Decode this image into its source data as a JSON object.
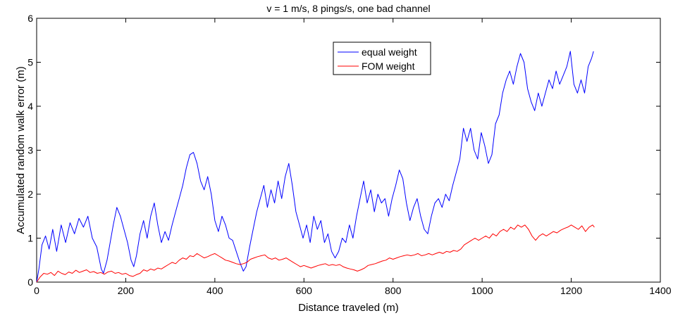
{
  "chart_data": {
    "type": "line",
    "title": "v = 1 m/s, 8 pings/s, one bad channel",
    "xlabel": "Distance traveled (m)",
    "ylabel": "Accumulated random walk error (m)",
    "xlim": [
      0,
      1400
    ],
    "ylim": [
      0,
      6
    ],
    "xticks": [
      0,
      200,
      400,
      600,
      800,
      1000,
      1200,
      1400
    ],
    "yticks": [
      0,
      1,
      2,
      3,
      4,
      5,
      6
    ],
    "grid": false,
    "legend_position": "top-center",
    "series": [
      {
        "name": "equal weight",
        "color": "#0000ff",
        "points": [
          [
            0,
            0.0
          ],
          [
            5,
            0.3
          ],
          [
            12,
            0.85
          ],
          [
            20,
            1.05
          ],
          [
            28,
            0.75
          ],
          [
            36,
            1.2
          ],
          [
            45,
            0.7
          ],
          [
            55,
            1.3
          ],
          [
            65,
            0.9
          ],
          [
            75,
            1.35
          ],
          [
            85,
            1.1
          ],
          [
            95,
            1.45
          ],
          [
            105,
            1.25
          ],
          [
            115,
            1.5
          ],
          [
            125,
            1.0
          ],
          [
            135,
            0.8
          ],
          [
            145,
            0.3
          ],
          [
            150,
            0.2
          ],
          [
            158,
            0.5
          ],
          [
            165,
            0.9
          ],
          [
            172,
            1.3
          ],
          [
            180,
            1.7
          ],
          [
            188,
            1.5
          ],
          [
            196,
            1.2
          ],
          [
            204,
            0.9
          ],
          [
            212,
            0.5
          ],
          [
            218,
            0.35
          ],
          [
            224,
            0.6
          ],
          [
            232,
            1.1
          ],
          [
            240,
            1.4
          ],
          [
            248,
            1.0
          ],
          [
            256,
            1.5
          ],
          [
            264,
            1.8
          ],
          [
            272,
            1.3
          ],
          [
            280,
            0.9
          ],
          [
            288,
            1.15
          ],
          [
            296,
            0.95
          ],
          [
            304,
            1.3
          ],
          [
            312,
            1.6
          ],
          [
            320,
            1.9
          ],
          [
            328,
            2.2
          ],
          [
            336,
            2.6
          ],
          [
            344,
            2.9
          ],
          [
            352,
            2.95
          ],
          [
            360,
            2.7
          ],
          [
            368,
            2.3
          ],
          [
            376,
            2.1
          ],
          [
            384,
            2.4
          ],
          [
            392,
            2.0
          ],
          [
            400,
            1.4
          ],
          [
            408,
            1.15
          ],
          [
            416,
            1.5
          ],
          [
            424,
            1.3
          ],
          [
            432,
            1.0
          ],
          [
            440,
            0.95
          ],
          [
            448,
            0.7
          ],
          [
            456,
            0.45
          ],
          [
            464,
            0.25
          ],
          [
            470,
            0.35
          ],
          [
            478,
            0.8
          ],
          [
            486,
            1.2
          ],
          [
            494,
            1.6
          ],
          [
            502,
            1.9
          ],
          [
            510,
            2.2
          ],
          [
            518,
            1.7
          ],
          [
            526,
            2.1
          ],
          [
            534,
            1.8
          ],
          [
            542,
            2.3
          ],
          [
            550,
            1.9
          ],
          [
            558,
            2.4
          ],
          [
            566,
            2.7
          ],
          [
            574,
            2.2
          ],
          [
            582,
            1.6
          ],
          [
            590,
            1.3
          ],
          [
            598,
            1.0
          ],
          [
            606,
            1.3
          ],
          [
            614,
            0.9
          ],
          [
            622,
            1.5
          ],
          [
            630,
            1.2
          ],
          [
            638,
            1.4
          ],
          [
            646,
            0.9
          ],
          [
            654,
            1.1
          ],
          [
            662,
            0.7
          ],
          [
            670,
            0.55
          ],
          [
            678,
            0.7
          ],
          [
            686,
            1.0
          ],
          [
            694,
            0.9
          ],
          [
            702,
            1.3
          ],
          [
            710,
            1.0
          ],
          [
            718,
            1.5
          ],
          [
            726,
            1.9
          ],
          [
            734,
            2.3
          ],
          [
            742,
            1.8
          ],
          [
            750,
            2.1
          ],
          [
            758,
            1.6
          ],
          [
            766,
            2.0
          ],
          [
            774,
            1.8
          ],
          [
            782,
            1.9
          ],
          [
            790,
            1.5
          ],
          [
            798,
            1.9
          ],
          [
            806,
            2.2
          ],
          [
            814,
            2.55
          ],
          [
            822,
            2.35
          ],
          [
            830,
            1.8
          ],
          [
            838,
            1.4
          ],
          [
            846,
            1.7
          ],
          [
            854,
            1.9
          ],
          [
            862,
            1.5
          ],
          [
            870,
            1.2
          ],
          [
            878,
            1.1
          ],
          [
            886,
            1.5
          ],
          [
            894,
            1.8
          ],
          [
            902,
            1.9
          ],
          [
            910,
            1.7
          ],
          [
            918,
            2.0
          ],
          [
            926,
            1.85
          ],
          [
            934,
            2.2
          ],
          [
            942,
            2.5
          ],
          [
            950,
            2.8
          ],
          [
            958,
            3.5
          ],
          [
            966,
            3.2
          ],
          [
            974,
            3.5
          ],
          [
            982,
            3.0
          ],
          [
            990,
            2.8
          ],
          [
            998,
            3.4
          ],
          [
            1006,
            3.1
          ],
          [
            1014,
            2.7
          ],
          [
            1022,
            2.9
          ],
          [
            1030,
            3.6
          ],
          [
            1038,
            3.8
          ],
          [
            1046,
            4.3
          ],
          [
            1054,
            4.6
          ],
          [
            1062,
            4.8
          ],
          [
            1070,
            4.5
          ],
          [
            1078,
            4.9
          ],
          [
            1086,
            5.2
          ],
          [
            1094,
            5.0
          ],
          [
            1102,
            4.4
          ],
          [
            1110,
            4.1
          ],
          [
            1118,
            3.9
          ],
          [
            1126,
            4.3
          ],
          [
            1134,
            4.0
          ],
          [
            1142,
            4.3
          ],
          [
            1150,
            4.6
          ],
          [
            1158,
            4.4
          ],
          [
            1166,
            4.8
          ],
          [
            1174,
            4.5
          ],
          [
            1182,
            4.7
          ],
          [
            1190,
            4.9
          ],
          [
            1198,
            5.25
          ],
          [
            1206,
            4.5
          ],
          [
            1214,
            4.3
          ],
          [
            1222,
            4.6
          ],
          [
            1230,
            4.3
          ],
          [
            1238,
            4.9
          ],
          [
            1246,
            5.1
          ],
          [
            1250,
            5.25
          ]
        ]
      },
      {
        "name": "FOM weight",
        "color": "#ff0000",
        "points": [
          [
            0,
            0.0
          ],
          [
            8,
            0.12
          ],
          [
            16,
            0.2
          ],
          [
            24,
            0.18
          ],
          [
            32,
            0.22
          ],
          [
            40,
            0.15
          ],
          [
            48,
            0.25
          ],
          [
            56,
            0.2
          ],
          [
            64,
            0.17
          ],
          [
            72,
            0.23
          ],
          [
            80,
            0.2
          ],
          [
            88,
            0.27
          ],
          [
            96,
            0.22
          ],
          [
            104,
            0.25
          ],
          [
            112,
            0.28
          ],
          [
            120,
            0.22
          ],
          [
            128,
            0.24
          ],
          [
            136,
            0.2
          ],
          [
            144,
            0.22
          ],
          [
            152,
            0.18
          ],
          [
            160,
            0.23
          ],
          [
            168,
            0.25
          ],
          [
            176,
            0.2
          ],
          [
            184,
            0.22
          ],
          [
            192,
            0.18
          ],
          [
            200,
            0.2
          ],
          [
            208,
            0.15
          ],
          [
            216,
            0.13
          ],
          [
            224,
            0.17
          ],
          [
            232,
            0.2
          ],
          [
            240,
            0.28
          ],
          [
            248,
            0.25
          ],
          [
            256,
            0.3
          ],
          [
            264,
            0.27
          ],
          [
            272,
            0.32
          ],
          [
            280,
            0.3
          ],
          [
            288,
            0.35
          ],
          [
            296,
            0.4
          ],
          [
            304,
            0.45
          ],
          [
            312,
            0.42
          ],
          [
            320,
            0.5
          ],
          [
            328,
            0.55
          ],
          [
            336,
            0.52
          ],
          [
            344,
            0.6
          ],
          [
            352,
            0.58
          ],
          [
            360,
            0.65
          ],
          [
            368,
            0.6
          ],
          [
            376,
            0.55
          ],
          [
            384,
            0.58
          ],
          [
            392,
            0.62
          ],
          [
            400,
            0.65
          ],
          [
            408,
            0.6
          ],
          [
            416,
            0.55
          ],
          [
            424,
            0.5
          ],
          [
            432,
            0.48
          ],
          [
            440,
            0.45
          ],
          [
            448,
            0.42
          ],
          [
            456,
            0.4
          ],
          [
            464,
            0.42
          ],
          [
            472,
            0.45
          ],
          [
            480,
            0.52
          ],
          [
            488,
            0.55
          ],
          [
            496,
            0.58
          ],
          [
            504,
            0.6
          ],
          [
            512,
            0.62
          ],
          [
            520,
            0.55
          ],
          [
            528,
            0.52
          ],
          [
            536,
            0.55
          ],
          [
            544,
            0.5
          ],
          [
            552,
            0.52
          ],
          [
            560,
            0.55
          ],
          [
            568,
            0.5
          ],
          [
            576,
            0.45
          ],
          [
            584,
            0.4
          ],
          [
            592,
            0.35
          ],
          [
            600,
            0.38
          ],
          [
            608,
            0.35
          ],
          [
            616,
            0.32
          ],
          [
            624,
            0.35
          ],
          [
            632,
            0.38
          ],
          [
            640,
            0.4
          ],
          [
            648,
            0.42
          ],
          [
            656,
            0.38
          ],
          [
            664,
            0.4
          ],
          [
            672,
            0.38
          ],
          [
            680,
            0.4
          ],
          [
            688,
            0.35
          ],
          [
            696,
            0.32
          ],
          [
            704,
            0.3
          ],
          [
            712,
            0.28
          ],
          [
            720,
            0.25
          ],
          [
            728,
            0.28
          ],
          [
            736,
            0.32
          ],
          [
            744,
            0.38
          ],
          [
            752,
            0.4
          ],
          [
            760,
            0.42
          ],
          [
            768,
            0.45
          ],
          [
            776,
            0.48
          ],
          [
            784,
            0.5
          ],
          [
            792,
            0.55
          ],
          [
            800,
            0.52
          ],
          [
            808,
            0.55
          ],
          [
            816,
            0.58
          ],
          [
            824,
            0.6
          ],
          [
            832,
            0.62
          ],
          [
            840,
            0.6
          ],
          [
            848,
            0.62
          ],
          [
            856,
            0.65
          ],
          [
            864,
            0.6
          ],
          [
            872,
            0.62
          ],
          [
            880,
            0.65
          ],
          [
            888,
            0.62
          ],
          [
            896,
            0.65
          ],
          [
            904,
            0.68
          ],
          [
            912,
            0.65
          ],
          [
            920,
            0.7
          ],
          [
            928,
            0.68
          ],
          [
            936,
            0.72
          ],
          [
            944,
            0.7
          ],
          [
            952,
            0.75
          ],
          [
            960,
            0.85
          ],
          [
            968,
            0.9
          ],
          [
            976,
            0.95
          ],
          [
            984,
            1.0
          ],
          [
            992,
            0.95
          ],
          [
            1000,
            1.0
          ],
          [
            1008,
            1.05
          ],
          [
            1016,
            1.0
          ],
          [
            1024,
            1.1
          ],
          [
            1032,
            1.05
          ],
          [
            1040,
            1.15
          ],
          [
            1048,
            1.2
          ],
          [
            1056,
            1.15
          ],
          [
            1064,
            1.25
          ],
          [
            1072,
            1.2
          ],
          [
            1080,
            1.3
          ],
          [
            1088,
            1.25
          ],
          [
            1096,
            1.3
          ],
          [
            1104,
            1.2
          ],
          [
            1112,
            1.05
          ],
          [
            1120,
            0.95
          ],
          [
            1128,
            1.05
          ],
          [
            1136,
            1.1
          ],
          [
            1144,
            1.05
          ],
          [
            1152,
            1.1
          ],
          [
            1160,
            1.15
          ],
          [
            1168,
            1.12
          ],
          [
            1176,
            1.18
          ],
          [
            1184,
            1.22
          ],
          [
            1192,
            1.25
          ],
          [
            1200,
            1.3
          ],
          [
            1208,
            1.25
          ],
          [
            1216,
            1.2
          ],
          [
            1224,
            1.28
          ],
          [
            1232,
            1.15
          ],
          [
            1240,
            1.25
          ],
          [
            1248,
            1.3
          ],
          [
            1252,
            1.25
          ]
        ]
      }
    ]
  }
}
